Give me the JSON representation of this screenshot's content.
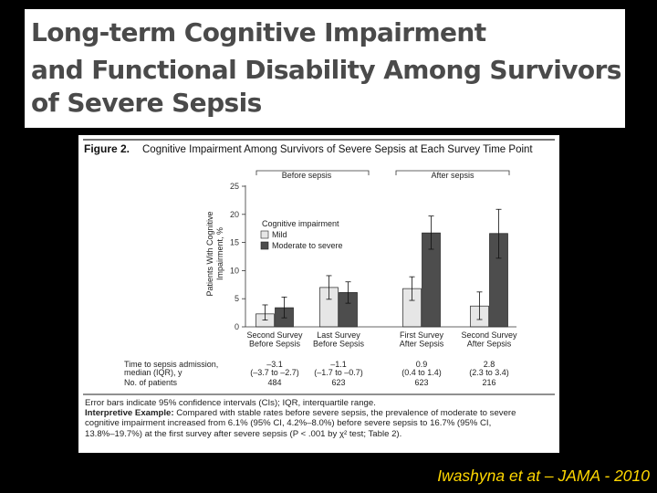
{
  "title": {
    "lines": [
      "Long-term Cognitive Impairment",
      "and Functional Disability Among Survivors",
      "of Severe Sepsis"
    ]
  },
  "figure": {
    "label": "Figure 2.",
    "heading": "Cognitive Impairment Among Survivors of Severe Sepsis at Each Survey Time Point",
    "group_before": "Before sepsis",
    "group_after": "After sepsis",
    "legend_title": "Cognitive impairment",
    "legend_mild": "Mild",
    "legend_moderate": "Moderate to severe",
    "table": {
      "row1_label_a": "Time to sepsis admission,",
      "row1_label_b": "median (IQR), y",
      "row2_label": "No. of patients",
      "medians": [
        "–3.1",
        "–1.1",
        "0.9",
        "2.8"
      ],
      "iqrs": [
        "(–3.7 to –2.7)",
        "(–1.7 to –0.7)",
        "(0.4 to 1.4)",
        "(2.3 to 3.4)"
      ],
      "patients": [
        "484",
        "623",
        "623",
        "216"
      ]
    },
    "caption": {
      "line1": "Error bars indicate 95% confidence intervals (CIs); IQR, interquartile range.",
      "line2_bold": "Interpretive Example:",
      "line2_rest": " Compared with stable rates before severe sepsis, the prevalence of moderate to severe",
      "line3": "cognitive impairment increased from 6.1% (95% CI, 4.2%–8.0%) before severe sepsis to 16.7% (95% CI,",
      "line4": "13.8%–19.7%) at the first survey after severe sepsis (P < .001 by χ² test; Table 2)."
    }
  },
  "chart_data": {
    "type": "bar",
    "title": "Cognitive Impairment Among Survivors of Severe Sepsis at Each Survey Time Point",
    "xlabel": "",
    "ylabel": "Patients With Cognitive Impairment, %",
    "ylim": [
      0,
      25
    ],
    "yticks": [
      0,
      5,
      10,
      15,
      20,
      25
    ],
    "categories": [
      [
        "Second Survey",
        "Before Sepsis"
      ],
      [
        "Last Survey",
        "Before Sepsis"
      ],
      [
        "First Survey",
        "After Sepsis"
      ],
      [
        "Second Survey",
        "After Sepsis"
      ]
    ],
    "series": [
      {
        "name": "Mild",
        "values": [
          2.3,
          7.0,
          6.8,
          3.7
        ],
        "ci": [
          [
            1.2,
            3.9
          ],
          [
            4.9,
            9.1
          ],
          [
            4.7,
            8.9
          ],
          [
            1.3,
            6.2
          ]
        ]
      },
      {
        "name": "Moderate to severe",
        "values": [
          3.4,
          6.1,
          16.7,
          16.6
        ],
        "ci": [
          [
            1.6,
            5.3
          ],
          [
            4.2,
            8.0
          ],
          [
            13.8,
            19.7
          ],
          [
            12.2,
            20.9
          ]
        ]
      }
    ],
    "colors": {
      "Mild": "#e6e6e6",
      "Moderate to severe": "#4d4d4d"
    },
    "grid": false,
    "legend_position": "inside-top-left"
  },
  "credit": "Iwashyna et at – JAMA - 2010"
}
